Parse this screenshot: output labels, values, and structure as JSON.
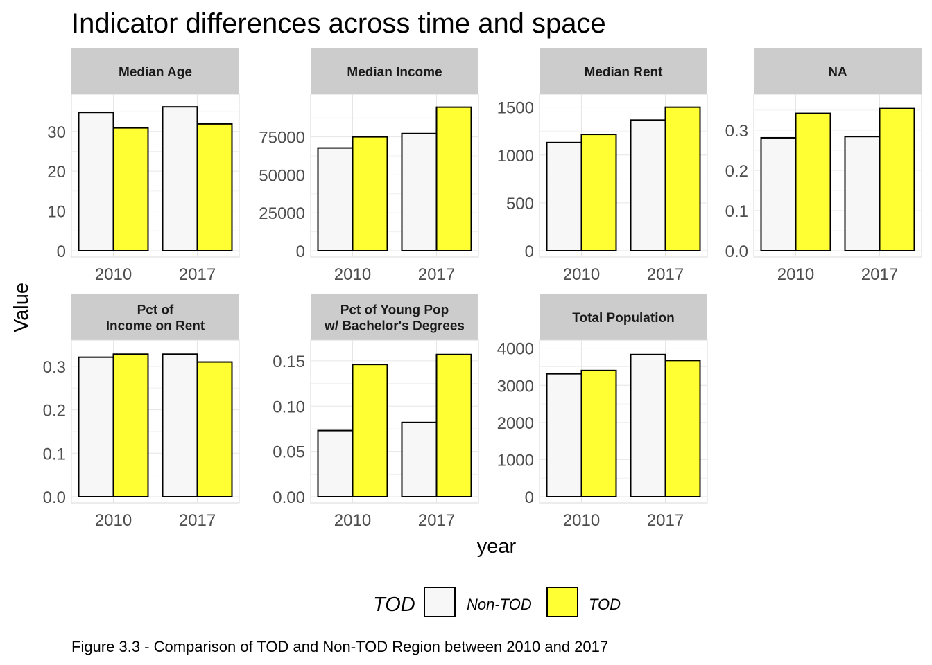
{
  "chart_data": {
    "type": "bar",
    "title": "Indicator differences across time and space",
    "xlabel": "year",
    "ylabel": "Value",
    "caption": "Figure 3.3 - Comparison of TOD and Non-TOD Region between 2010 and 2017",
    "legend": {
      "title": "TOD",
      "position": "bottom",
      "entries": [
        {
          "label": "Non-TOD",
          "color": "#f7f7f7"
        },
        {
          "label": "TOD",
          "color": "#ffff33"
        }
      ]
    },
    "categories": [
      "2010",
      "2017"
    ],
    "grid": true,
    "facets": [
      {
        "strip": [
          "Median Age"
        ],
        "yticks": [
          0,
          10,
          20,
          30
        ],
        "tick_labels": [
          "0",
          "10",
          "20",
          "30"
        ],
        "ylim": [
          0,
          37.8
        ],
        "series": [
          {
            "name": "Non-TOD",
            "values": [
              34.8,
              36.2
            ]
          },
          {
            "name": "TOD",
            "values": [
              30.9,
              31.9
            ]
          }
        ]
      },
      {
        "strip": [
          "Median Income"
        ],
        "yticks": [
          0,
          25000,
          50000,
          75000
        ],
        "tick_labels": [
          "0",
          "25000",
          "50000",
          "75000"
        ],
        "ylim": [
          0,
          99000
        ],
        "series": [
          {
            "name": "Non-TOD",
            "values": [
              67700,
              77200
            ]
          },
          {
            "name": "TOD",
            "values": [
              75000,
              94600
            ]
          }
        ]
      },
      {
        "strip": [
          "Median Rent"
        ],
        "yticks": [
          0,
          500,
          1000,
          1500
        ],
        "tick_labels": [
          "0",
          "500",
          "1000",
          "1500"
        ],
        "ylim": [
          0,
          1570
        ],
        "series": [
          {
            "name": "Non-TOD",
            "values": [
              1130,
              1365
            ]
          },
          {
            "name": "TOD",
            "values": [
              1215,
              1500
            ]
          }
        ]
      },
      {
        "strip": [
          "NA"
        ],
        "yticks": [
          0,
          0.1,
          0.2,
          0.3
        ],
        "tick_labels": [
          "0.0",
          "0.1",
          "0.2",
          "0.3"
        ],
        "ylim": [
          0,
          0.374
        ],
        "series": [
          {
            "name": "Non-TOD",
            "values": [
              0.281,
              0.284
            ]
          },
          {
            "name": "TOD",
            "values": [
              0.342,
              0.354
            ]
          }
        ]
      },
      {
        "strip": [
          "Pct of",
          "Income on Rent"
        ],
        "yticks": [
          0,
          0.1,
          0.2,
          0.3
        ],
        "tick_labels": [
          "0.0",
          "0.1",
          "0.2",
          "0.3"
        ],
        "ylim": [
          0,
          0.346
        ],
        "series": [
          {
            "name": "Non-TOD",
            "values": [
              0.321,
              0.328
            ]
          },
          {
            "name": "TOD",
            "values": [
              0.328,
              0.31
            ]
          }
        ]
      },
      {
        "strip": [
          "Pct of Young Pop",
          "w/ Bachelor's Degrees"
        ],
        "yticks": [
          0,
          0.05,
          0.1,
          0.15
        ],
        "tick_labels": [
          "0.00",
          "0.05",
          "0.10",
          "0.15"
        ],
        "ylim": [
          0,
          0.166
        ],
        "series": [
          {
            "name": "Non-TOD",
            "values": [
              0.073,
              0.082
            ]
          },
          {
            "name": "TOD",
            "values": [
              0.146,
              0.157
            ]
          }
        ]
      },
      {
        "strip": [
          "Total Population"
        ],
        "yticks": [
          0,
          1000,
          2000,
          3000,
          4000
        ],
        "tick_labels": [
          "0",
          "1000",
          "2000",
          "3000",
          "4000"
        ],
        "ylim": [
          0,
          4050
        ],
        "series": [
          {
            "name": "Non-TOD",
            "values": [
              3310,
              3830
            ]
          },
          {
            "name": "TOD",
            "values": [
              3400,
              3670
            ]
          }
        ]
      }
    ]
  }
}
